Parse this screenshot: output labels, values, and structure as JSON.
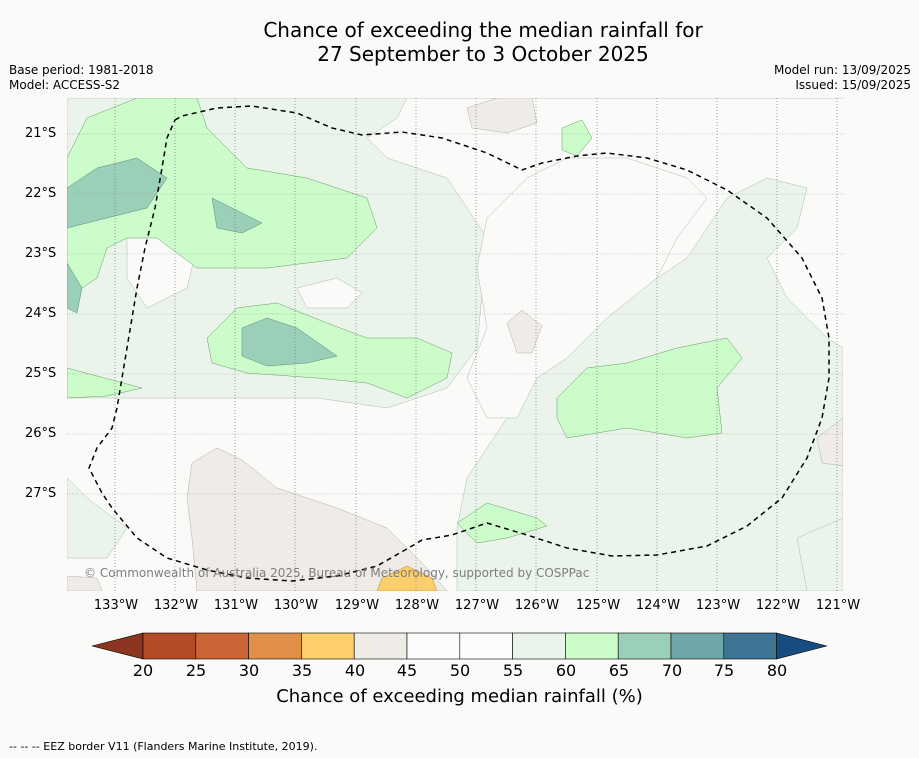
{
  "header": {
    "title_line1": "Chance of exceeding the median rainfall for",
    "title_line2": "27 September to 3 October 2025",
    "base_period": "Base period: 1981-2018",
    "model": "Model: ACCESS-S2",
    "model_run": "Model run: 13/09/2025",
    "issued": "Issued: 15/09/2025"
  },
  "map": {
    "lat_labels": [
      "21°S",
      "22°S",
      "23°S",
      "24°S",
      "25°S",
      "26°S",
      "27°S"
    ],
    "lon_labels": [
      "133°W",
      "132°W",
      "131°W",
      "130°W",
      "129°W",
      "128°W",
      "127°W",
      "126°W",
      "125°W",
      "124°W",
      "123°W",
      "122°W",
      "121°W"
    ],
    "copyright": "© Commonwealth of Australia 2025, Bureau of Meteorology, supported by COSPPac"
  },
  "colorbar": {
    "ticks": [
      "20",
      "25",
      "30",
      "35",
      "40",
      "45",
      "50",
      "55",
      "60",
      "65",
      "70",
      "75",
      "80"
    ],
    "colors": [
      "#b24b26",
      "#cc6637",
      "#e08f48",
      "#fdcf6a",
      "#efece8",
      "#fbfcfb",
      "#fbfcfb",
      "#ebf4ea",
      "#cbfcc9",
      "#9acfb8",
      "#6fa6a8",
      "#3e7494"
    ],
    "low_extend": "#8c3520",
    "high_extend": "#184b7f",
    "title": "Chance of exceeding median rainfall (%)"
  },
  "footnote": "--  --  -- EEZ border V11 (Flanders Marine Institute, 2019)."
}
